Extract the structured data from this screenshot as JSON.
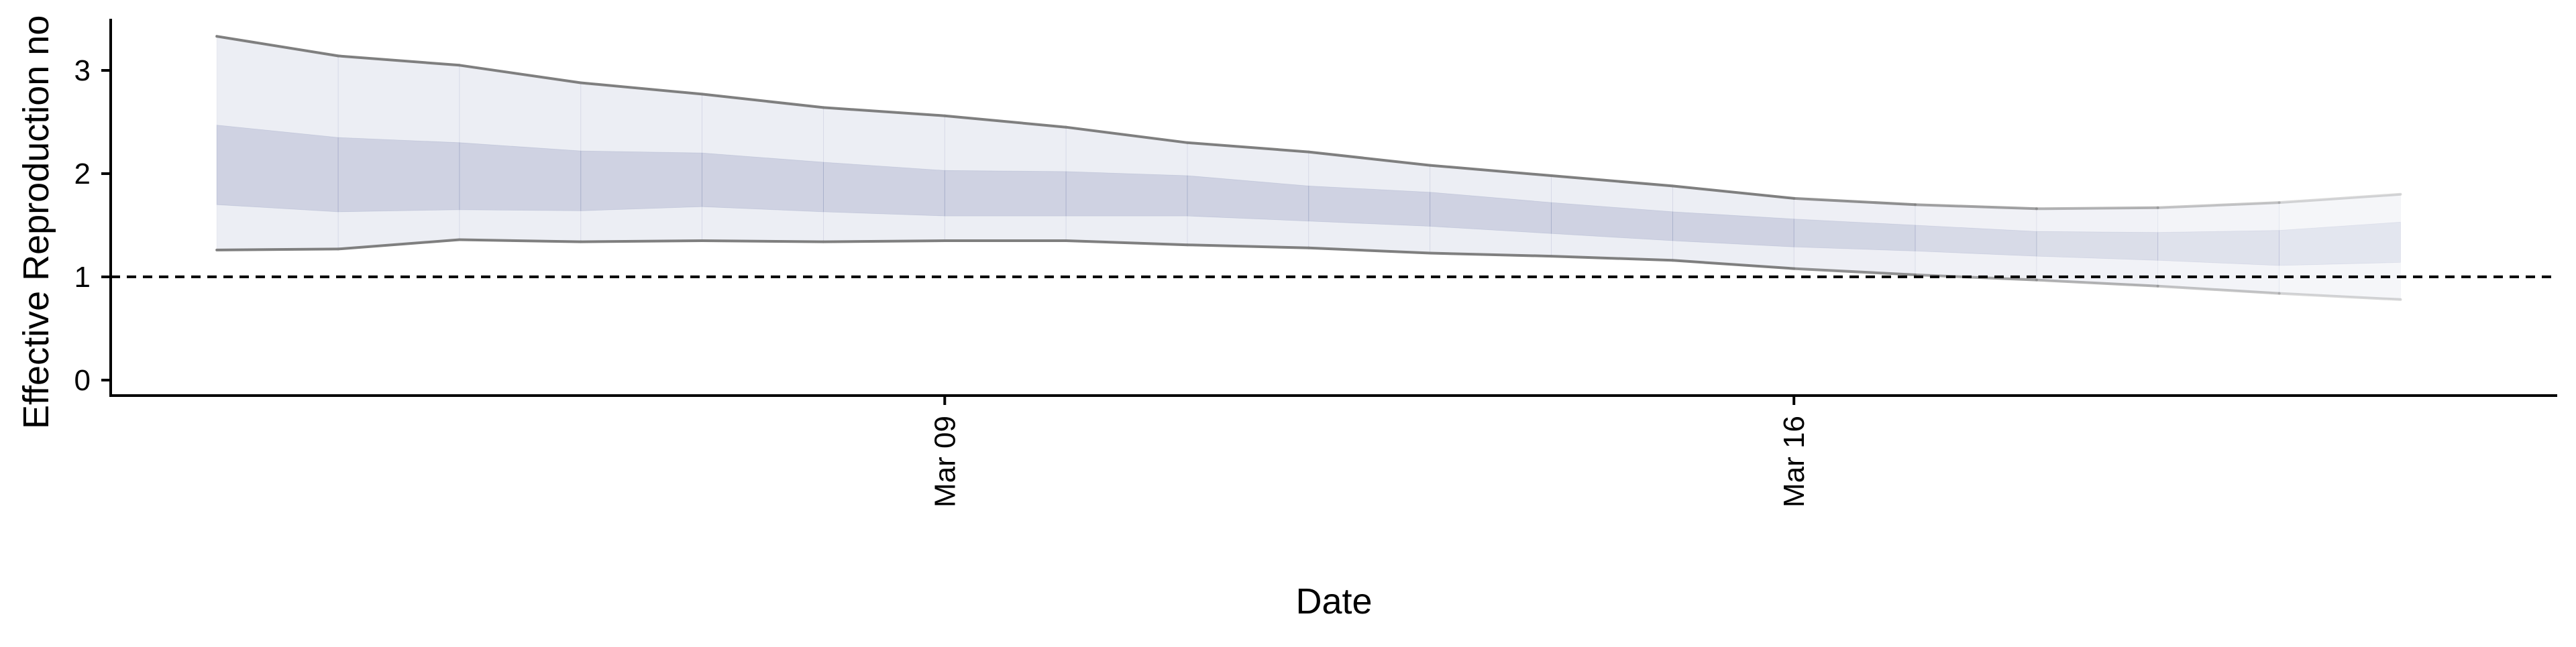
{
  "chart_data": {
    "type": "area",
    "title": "",
    "xlabel": "Date",
    "ylabel": "Effective Reproduction no",
    "x": [
      "2020-03-03",
      "2020-03-04",
      "2020-03-05",
      "2020-03-06",
      "2020-03-07",
      "2020-03-08",
      "2020-03-09",
      "2020-03-10",
      "2020-03-11",
      "2020-03-12",
      "2020-03-13",
      "2020-03-14",
      "2020-03-15",
      "2020-03-16",
      "2020-03-17",
      "2020-03-18",
      "2020-03-19",
      "2020-03-20",
      "2020-03-21"
    ],
    "xlim": [
      "2020-03-02 03:00",
      "2020-03-22 07:00"
    ],
    "x_ticks": [
      {
        "label": "Mar 09",
        "date": "2020-03-09"
      },
      {
        "label": "Mar 16",
        "date": "2020-03-16"
      }
    ],
    "ylim": [
      -0.15,
      3.5
    ],
    "y_ticks": [
      0,
      1,
      2,
      3
    ],
    "reference_line": {
      "y": 1,
      "style": "dashed"
    },
    "series": [
      {
        "band": "outer",
        "lower": [
          1.26,
          1.27,
          1.36,
          1.34,
          1.35,
          1.34,
          1.35,
          1.35,
          1.31,
          1.28,
          1.23,
          1.2,
          1.16,
          1.08,
          1.02,
          0.97,
          0.91,
          0.84,
          0.78
        ],
        "upper": [
          3.33,
          3.14,
          3.05,
          2.88,
          2.77,
          2.64,
          2.56,
          2.45,
          2.3,
          2.21,
          2.08,
          1.98,
          1.88,
          1.76,
          1.7,
          1.66,
          1.67,
          1.72,
          1.8
        ]
      },
      {
        "band": "inner",
        "lower": [
          1.7,
          1.63,
          1.65,
          1.64,
          1.68,
          1.63,
          1.59,
          1.59,
          1.59,
          1.54,
          1.49,
          1.42,
          1.35,
          1.29,
          1.25,
          1.2,
          1.16,
          1.11,
          1.14
        ],
        "upper": [
          2.47,
          2.35,
          2.3,
          2.22,
          2.2,
          2.11,
          2.03,
          2.02,
          1.98,
          1.88,
          1.82,
          1.72,
          1.63,
          1.56,
          1.5,
          1.44,
          1.43,
          1.45,
          1.53
        ]
      }
    ],
    "grid": false,
    "legend": "none",
    "colors": {
      "band_fill": "#8a93ba",
      "boundary_line": "#7f7f7f",
      "reference_line": "#000000",
      "axis": "#000000"
    }
  }
}
